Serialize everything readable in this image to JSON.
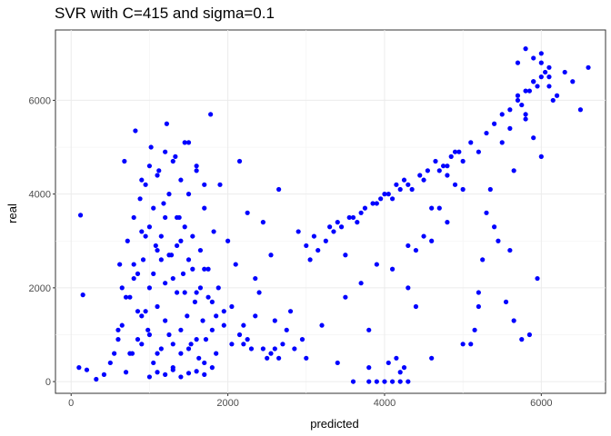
{
  "chart_data": {
    "type": "scatter",
    "title": "SVR with C=415 and sigma=0.1",
    "xlabel": "predicted",
    "ylabel": "real",
    "xlim": [
      -200,
      6820
    ],
    "ylim": [
      -250,
      7500
    ],
    "x_ticks": [
      0,
      2000,
      4000,
      6000
    ],
    "y_ticks": [
      0,
      2000,
      4000,
      6000
    ],
    "x_tick_labels": [
      "0",
      "2000",
      "4000",
      "6000"
    ],
    "y_tick_labels": [
      "0",
      "2000",
      "4000",
      "6000"
    ],
    "grid": true,
    "legend": "none",
    "point_color": "#0000ff",
    "points_x": [
      100,
      120,
      150,
      200,
      320,
      420,
      500,
      550,
      600,
      620,
      650,
      680,
      700,
      720,
      750,
      780,
      800,
      820,
      850,
      880,
      900,
      920,
      950,
      980,
      1000,
      1020,
      1050,
      1080,
      1100,
      1120,
      1150,
      1180,
      1200,
      1220,
      1250,
      1280,
      1300,
      1330,
      1350,
      1380,
      1400,
      1430,
      1450,
      1480,
      1500,
      1530,
      1550,
      1580,
      1600,
      1630,
      1650,
      1680,
      1700,
      1720,
      1750,
      1780,
      1800,
      1820,
      1850,
      1880,
      1900,
      1950,
      2000,
      2050,
      2100,
      2150,
      2200,
      2250,
      2300,
      2350,
      2400,
      2450,
      2500,
      2550,
      2600,
      2650,
      2700,
      2800,
      2900,
      3000,
      3100,
      3200,
      3300,
      3400,
      3500,
      3600,
      3700,
      3800,
      3900,
      4000,
      4100,
      4200,
      4300,
      4400,
      4500,
      4600,
      4700,
      4800,
      4900,
      5000,
      5100,
      5200,
      5300,
      5400,
      5500,
      5600,
      5700,
      5800,
      5900,
      6000,
      6100,
      6200,
      6300,
      6400,
      6500,
      6600,
      700,
      800,
      900,
      1000,
      1100,
      1200,
      1300,
      1400,
      1500,
      1600,
      1700,
      1800,
      900,
      1000,
      1100,
      1200,
      1300,
      1400,
      1500,
      1600,
      1700,
      1800,
      2200,
      2600,
      3000,
      3400,
      3800,
      4200,
      4600,
      5000,
      5200,
      5400,
      5600,
      5700,
      5800,
      5900,
      6000,
      6100,
      5500,
      5650,
      5800,
      5950,
      6050,
      6150,
      5750,
      5850,
      5900,
      6000,
      6100,
      5600,
      5700,
      5800,
      5900,
      6000,
      4800,
      4900,
      5000,
      4700,
      4500,
      4300,
      3900,
      3700,
      3500,
      4100,
      4300,
      4400,
      4600,
      4800,
      5100,
      5150,
      5200,
      5250,
      5300,
      5350,
      5450,
      5550,
      5650,
      5750,
      5850,
      5950,
      1000,
      1100,
      1200,
      1300,
      1400,
      1500,
      1600,
      1700,
      1000,
      1100,
      1200,
      1300,
      1400,
      1500,
      1600,
      1700,
      800,
      850,
      900,
      950,
      1050,
      1150,
      1250,
      1350,
      1450,
      1550,
      1650,
      1750,
      1850,
      1950,
      2050,
      2150,
      2250,
      2350,
      2450,
      2550,
      2650,
      2750,
      2850,
      2950,
      3050,
      3150,
      3250,
      3350,
      3450,
      3550,
      3650,
      3750,
      3850,
      3950,
      4050,
      4150,
      4250,
      4350,
      4450,
      4550,
      4650,
      4750,
      4850,
      4950,
      3600,
      3800,
      3900,
      4000,
      4100,
      4200,
      4300,
      4050,
      4150,
      4250,
      600,
      650,
      750,
      850,
      950,
      1050,
      1150,
      1250,
      1350,
      1450
    ],
    "points_y": [
      300,
      3550,
      1850,
      250,
      50,
      150,
      400,
      600,
      900,
      2500,
      1200,
      4700,
      200,
      3000,
      1800,
      600,
      2200,
      5350,
      1500,
      3900,
      800,
      2600,
      4200,
      1100,
      3300,
      5000,
      400,
      2900,
      1600,
      4500,
      700,
      3800,
      2100,
      5500,
      1000,
      2700,
      300,
      4800,
      1900,
      3500,
      600,
      2300,
      5100,
      1400,
      4000,
      800,
      3100,
      1700,
      4600,
      500,
      2800,
      1300,
      3700,
      900,
      2400,
      5700,
      1100,
      3200,
      600,
      2000,
      4200,
      1500,
      3000,
      800,
      2500,
      4700,
      1200,
      3600,
      700,
      2200,
      1900,
      3400,
      500,
      2700,
      1300,
      4100,
      800,
      1500,
      3200,
      2900,
      3100,
      1200,
      3300,
      3400,
      2700,
      3500,
      3600,
      1100,
      3800,
      4000,
      3900,
      4100,
      4200,
      2800,
      4300,
      3700,
      4500,
      4600,
      4200,
      4700,
      5100,
      4900,
      5300,
      5500,
      5700,
      5800,
      6000,
      6200,
      6400,
      6500,
      6300,
      6100,
      6600,
      6400,
      5800,
      6700,
      1800,
      2500,
      3200,
      2000,
      2800,
      3500,
      2200,
      3000,
      2600,
      1900,
      2400,
      1700,
      1400,
      1000,
      600,
      1300,
      800,
      1100,
      700,
      900,
      400,
      300,
      800,
      700,
      500,
      400,
      300,
      200,
      500,
      800,
      1900,
      3300,
      2800,
      6800,
      7100,
      6900,
      7000,
      6700,
      5100,
      4500,
      5600,
      6300,
      6600,
      6000,
      5900,
      6200,
      5200,
      6800,
      6500,
      5400,
      6100,
      5700,
      6400,
      4800,
      4400,
      4900,
      4100,
      3700,
      3100,
      2900,
      2500,
      2100,
      1800,
      2400,
      2000,
      1600,
      3000,
      3400,
      800,
      1100,
      1600,
      2600,
      3600,
      4100,
      3000,
      1700,
      1300,
      900,
      1000,
      2200,
      100,
      200,
      150,
      250,
      100,
      180,
      220,
      150,
      4600,
      4400,
      4900,
      4700,
      4300,
      5100,
      4500,
      4200,
      3500,
      2300,
      4300,
      3100,
      3700,
      2600,
      4000,
      2900,
      3300,
      2400,
      2000,
      1800,
      1400,
      1200,
      1600,
      1000,
      900,
      1400,
      700,
      600,
      500,
      1100,
      700,
      900,
      2600,
      2800,
      3000,
      3200,
      3300,
      3500,
      3400,
      3700,
      3800,
      3900,
      4000,
      4200,
      4300,
      4100,
      4400,
      4500,
      4700,
      4600,
      4800,
      4900,
      0,
      0,
      0,
      0,
      0,
      0,
      0,
      400,
      500,
      300,
      1100,
      2000,
      600,
      900,
      1500,
      2300,
      3100,
      2700,
      3500,
      1900
    ]
  }
}
